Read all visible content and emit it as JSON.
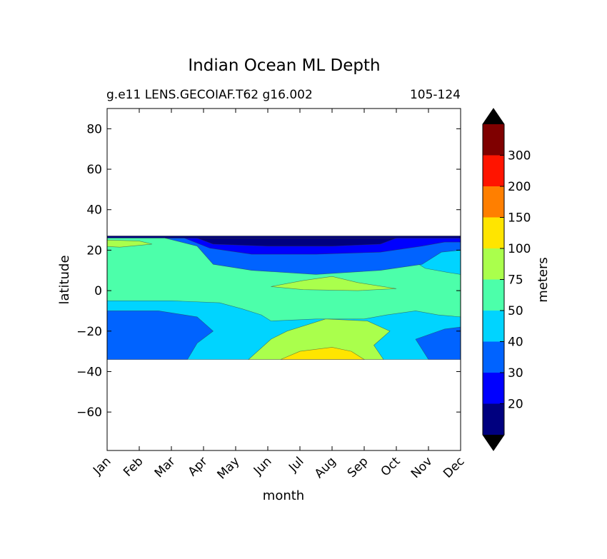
{
  "chart_data": {
    "type": "heatmap",
    "title": "Indian Ocean ML Depth",
    "subtitle_left": "g.e11 LENS.GECOIAF.T62 g16.002",
    "subtitle_right": "105-124",
    "xlabel": "month",
    "ylabel": "latitude",
    "x_ticks": [
      "Jan",
      "Feb",
      "Mar",
      "Apr",
      "May",
      "Jun",
      "Jul",
      "Aug",
      "Sep",
      "Oct",
      "Nov",
      "Dec"
    ],
    "xlim": [
      0,
      11
    ],
    "ylim": [
      -79,
      90
    ],
    "y_ticks": [
      80,
      60,
      40,
      20,
      0,
      -20,
      -40,
      -60
    ],
    "y_tick_labels": [
      "80",
      "60",
      "40",
      "20",
      "0",
      "−20",
      "−40",
      "−60"
    ],
    "data_extent": {
      "lat_min": -34,
      "lat_max": 27
    },
    "colorbar": {
      "label": "meters",
      "levels": [
        20,
        30,
        40,
        50,
        75,
        100,
        150,
        200,
        300
      ],
      "level_labels": [
        "20",
        "30",
        "40",
        "50",
        "75",
        "100",
        "150",
        "200",
        "300"
      ],
      "colors": [
        "#00007f",
        "#0000ff",
        "#0063ff",
        "#00d4ff",
        "#4cffaa",
        "#aaff4c",
        "#ffe500",
        "#ff7f00",
        "#ff1400",
        "#7f0000"
      ],
      "extend": "both",
      "extend_min_color": "#000000",
      "extend_max_color": "#000000"
    },
    "regions": [
      {
        "level": 4,
        "points": [
          [
            0,
            27
          ],
          [
            11,
            27
          ],
          [
            11,
            -34
          ],
          [
            0,
            -34
          ]
        ]
      },
      {
        "level": 3,
        "points": [
          [
            0,
            -5
          ],
          [
            2,
            -5
          ],
          [
            3.5,
            -6
          ],
          [
            4.2,
            -9
          ],
          [
            4.8,
            -12
          ],
          [
            5.1,
            -15
          ],
          [
            6.5,
            -14
          ],
          [
            8,
            -14
          ],
          [
            8.7,
            -12
          ],
          [
            9.6,
            -10
          ],
          [
            10.3,
            -12
          ],
          [
            11,
            -13
          ],
          [
            11,
            -34
          ],
          [
            0,
            -34
          ]
        ]
      },
      {
        "level": 3,
        "points": [
          [
            8.8,
            25
          ],
          [
            9.2,
            18
          ],
          [
            9.9,
            11
          ],
          [
            10.6,
            9
          ],
          [
            11,
            8
          ],
          [
            11,
            25
          ]
        ]
      },
      {
        "level": 2,
        "points": [
          [
            0,
            -10
          ],
          [
            1.6,
            -10
          ],
          [
            2.8,
            -13
          ],
          [
            3.3,
            -20
          ],
          [
            2.8,
            -26
          ],
          [
            2.5,
            -34
          ],
          [
            0,
            -34
          ]
        ]
      },
      {
        "level": 2,
        "points": [
          [
            10,
            -34
          ],
          [
            9.6,
            -24
          ],
          [
            10.5,
            -19
          ],
          [
            11,
            -18
          ],
          [
            11,
            -34
          ]
        ]
      },
      {
        "level": 2,
        "points": [
          [
            1.8,
            26
          ],
          [
            2.8,
            22
          ],
          [
            3.3,
            13
          ],
          [
            4.5,
            10
          ],
          [
            6.5,
            8
          ],
          [
            8.5,
            10
          ],
          [
            9.8,
            13
          ],
          [
            10.4,
            19
          ],
          [
            11,
            20
          ],
          [
            11,
            26
          ]
        ]
      },
      {
        "level": 1,
        "points": [
          [
            2.4,
            26
          ],
          [
            3.2,
            21
          ],
          [
            4.5,
            18
          ],
          [
            6.5,
            18
          ],
          [
            8.5,
            19
          ],
          [
            9.8,
            22
          ],
          [
            10.5,
            24
          ],
          [
            11,
            24
          ],
          [
            11,
            26
          ]
        ]
      },
      {
        "level": 0,
        "points": [
          [
            2.8,
            26
          ],
          [
            3.3,
            23
          ],
          [
            5,
            22
          ],
          [
            7,
            22
          ],
          [
            8.5,
            23
          ],
          [
            9,
            26
          ]
        ]
      },
      {
        "level": 0,
        "points": [
          [
            0,
            27
          ],
          [
            11,
            27
          ],
          [
            11,
            26
          ],
          [
            0,
            26
          ]
        ]
      },
      {
        "level": 5,
        "points": [
          [
            4.4,
            -34
          ],
          [
            5.1,
            -24
          ],
          [
            5.6,
            -20
          ],
          [
            6.8,
            -14
          ],
          [
            8.1,
            -15
          ],
          [
            8.8,
            -20
          ],
          [
            8.3,
            -27
          ],
          [
            8.6,
            -34
          ]
        ]
      },
      {
        "level": 6,
        "points": [
          [
            5.4,
            -34
          ],
          [
            6,
            -30
          ],
          [
            7,
            -28
          ],
          [
            7.6,
            -30
          ],
          [
            8,
            -34
          ]
        ]
      },
      {
        "level": 5,
        "points": [
          [
            5.1,
            2
          ],
          [
            6.1,
            5
          ],
          [
            7,
            7
          ],
          [
            7.8,
            4
          ],
          [
            9,
            1
          ],
          [
            7.8,
            0
          ],
          [
            6.1,
            0.5
          ]
        ]
      },
      {
        "level": 5,
        "points": [
          [
            0,
            25
          ],
          [
            1,
            24.5
          ],
          [
            1.4,
            23
          ],
          [
            0.4,
            21.5
          ],
          [
            0,
            21.8
          ]
        ]
      }
    ]
  }
}
